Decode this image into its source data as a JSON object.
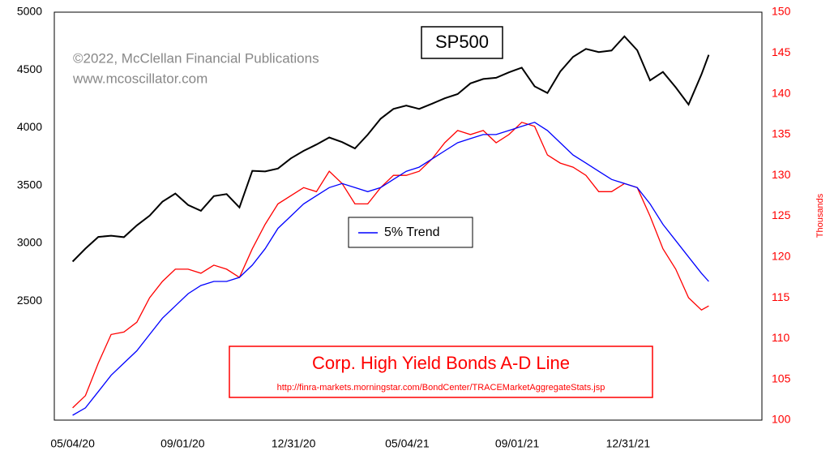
{
  "chart_data": {
    "type": "line",
    "annotations": {
      "copyright": "©2022, McClellan Financial Publications",
      "website": "www.mcoscillator.com",
      "source_url": "http://finra-markets.morningstar.com/BondCenter/TRACEMarketAggregateStats.jsp"
    },
    "y2label": "Thousands",
    "x": [
      "05/04/20",
      "05/18/20",
      "06/01/20",
      "06/15/20",
      "06/29/20",
      "07/13/20",
      "07/27/20",
      "08/10/20",
      "08/24/20",
      "09/07/20",
      "09/21/20",
      "10/05/20",
      "10/19/20",
      "11/02/20",
      "11/16/20",
      "11/30/20",
      "12/14/20",
      "12/28/20",
      "01/11/21",
      "01/25/21",
      "02/08/21",
      "02/22/21",
      "03/08/21",
      "03/22/21",
      "04/05/21",
      "04/19/21",
      "05/03/21",
      "05/17/21",
      "05/31/21",
      "06/14/21",
      "06/28/21",
      "07/12/21",
      "07/26/21",
      "08/09/21",
      "08/23/21",
      "09/06/21",
      "09/20/21",
      "10/04/21",
      "10/18/21",
      "11/01/21",
      "11/15/21",
      "11/29/21",
      "12/13/21",
      "12/27/21",
      "01/10/22",
      "01/24/22",
      "02/07/22",
      "02/21/22",
      "03/07/22",
      "03/21/22",
      "03/29/22"
    ],
    "xlim": [
      "04/14/20",
      "05/26/22"
    ],
    "xticks": [
      "05/04/20",
      "09/01/20",
      "12/31/20",
      "05/04/21",
      "09/01/21",
      "12/31/21"
    ],
    "ylim": [
      1470,
      5000
    ],
    "yticks": [
      2500,
      3000,
      3500,
      4000,
      4500,
      5000
    ],
    "y2lim": [
      100,
      150
    ],
    "y2ticks": [
      100,
      105,
      110,
      115,
      120,
      125,
      130,
      135,
      140,
      145,
      150
    ],
    "series": [
      {
        "name": "SP500",
        "color": "#000000",
        "axis": "y",
        "values": [
          2842,
          2954,
          3055,
          3066,
          3053,
          3155,
          3239,
          3360,
          3431,
          3331,
          3281,
          3408,
          3426,
          3310,
          3627,
          3622,
          3647,
          3735,
          3800,
          3855,
          3916,
          3876,
          3821,
          3940,
          4078,
          4163,
          4192,
          4163,
          4208,
          4255,
          4291,
          4384,
          4422,
          4432,
          4479,
          4520,
          4358,
          4300,
          4486,
          4613,
          4682,
          4655,
          4668,
          4791,
          4670,
          4410,
          4483,
          4349,
          4201,
          4461,
          4631
        ]
      },
      {
        "name": "Corp. High Yield Bonds A-D Line",
        "color": "#ff0000",
        "axis": "y2",
        "values": [
          101.5,
          103,
          107,
          110.5,
          110.8,
          112,
          115,
          117,
          118.5,
          118.5,
          118,
          119,
          118.5,
          117.5,
          121,
          124,
          126.5,
          127.5,
          128.5,
          128,
          130.5,
          129,
          126.5,
          126.5,
          128.5,
          130,
          130,
          130.5,
          132,
          134,
          135.5,
          135,
          135.5,
          134,
          135,
          136.5,
          136,
          132.5,
          131.5,
          131,
          130,
          128,
          128,
          129,
          128.5,
          125,
          121,
          118.5,
          115,
          113.5,
          114
        ]
      },
      {
        "name": "5% Trend",
        "color": "#0000ff",
        "axis": "y2",
        "values": [
          100.6,
          101.5,
          103.5,
          105.5,
          107,
          108.5,
          110.5,
          112.5,
          114,
          115.5,
          116.5,
          117,
          117,
          117.5,
          119,
          121,
          123.5,
          125,
          126.5,
          127.5,
          128.5,
          129,
          128.5,
          128,
          128.5,
          129.5,
          130.5,
          131,
          132,
          133,
          134,
          134.5,
          135,
          135,
          135.5,
          136,
          136.5,
          135.5,
          134,
          132.5,
          131.5,
          130.5,
          129.5,
          129,
          128.5,
          126.5,
          124,
          122,
          120,
          118,
          117
        ]
      }
    ]
  }
}
